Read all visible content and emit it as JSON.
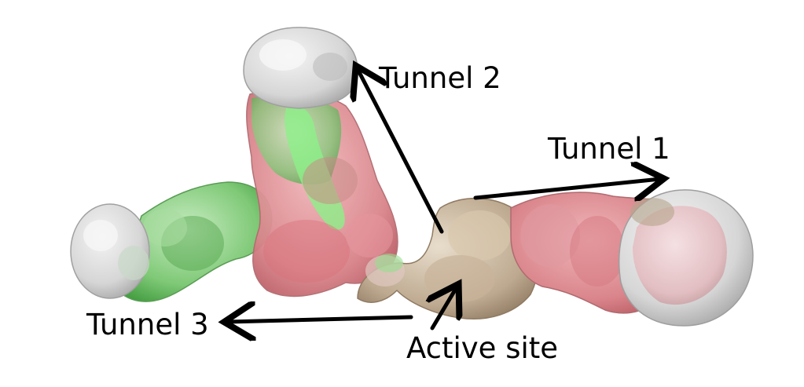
{
  "labels": {
    "tunnel_1": "Tunnel 1",
    "tunnel_2": "Tunnel 2",
    "tunnel_3": "Tunnel 3",
    "active_site": "Active site"
  },
  "colors": {
    "cap_gray": "#d8d8d8",
    "red_surface": "#d9848a",
    "green_surface": "#6fbf6a",
    "bright_green": "#7ce07a",
    "tan_surface": "#b5a48c",
    "arrow": "#000000"
  }
}
